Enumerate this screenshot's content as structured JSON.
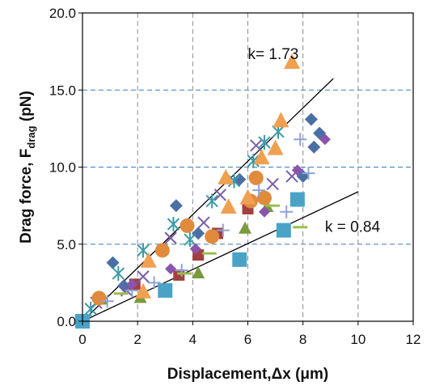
{
  "chart_data": {
    "type": "scatter",
    "xlabel": "Displacement,Δx (μm)",
    "ylabel_main": "Drag force,  F",
    "ylabel_sub": "drag",
    "ylabel_tail": " (pN)",
    "xlim": [
      0,
      12
    ],
    "ylim": [
      0,
      20
    ],
    "x_ticks": [
      0,
      2,
      4,
      6,
      8,
      10,
      12
    ],
    "y_ticks": [
      0,
      5,
      10,
      15,
      20
    ],
    "x_tick_labels": [
      "0",
      "2",
      "4",
      "6",
      "8",
      "10",
      "12"
    ],
    "y_tick_labels": [
      "0.0",
      "5.0",
      "10.0",
      "15.0",
      "20.0"
    ],
    "vertical_grid": "dashed gray",
    "horizontal_grid": "dashed blue",
    "fit_lines": [
      {
        "label": "k= 1.73",
        "slope": 1.73,
        "x_end": 9.1
      },
      {
        "label": "k = 0.84",
        "slope": 0.84,
        "x_end": 10.0
      }
    ],
    "series": [
      {
        "marker": "diamond",
        "color": "#4a6fa5",
        "points": [
          [
            0,
            0
          ],
          [
            1.1,
            3.8
          ],
          [
            1.5,
            2.3
          ],
          [
            3.4,
            7.5
          ],
          [
            4.2,
            5.7
          ],
          [
            5.7,
            9.2
          ],
          [
            8.3,
            13.1
          ],
          [
            8.4,
            11.3
          ],
          [
            8.6,
            12.2
          ],
          [
            8.0,
            9.4
          ]
        ]
      },
      {
        "marker": "square",
        "color": "#a33f3f",
        "points": [
          [
            0,
            0
          ],
          [
            1.9,
            2.4
          ],
          [
            3.5,
            3.0
          ],
          [
            4.2,
            4.3
          ],
          [
            4.9,
            5.7
          ],
          [
            6.0,
            7.3
          ]
        ]
      },
      {
        "marker": "triangle",
        "color": "#7a9a3d",
        "points": [
          [
            0,
            0
          ],
          [
            0.7,
            1.4
          ],
          [
            2.1,
            1.5
          ],
          [
            4.2,
            3.1
          ],
          [
            5.9,
            6.0
          ],
          [
            6.7,
            7.4
          ]
        ]
      },
      {
        "marker": "x",
        "color": "#7a5ea8",
        "points": [
          [
            0.5,
            1.2
          ],
          [
            1.6,
            2.0
          ],
          [
            2.2,
            2.9
          ],
          [
            3.2,
            5.4
          ],
          [
            4.4,
            6.4
          ],
          [
            5.0,
            8.2
          ],
          [
            6.3,
            11.4
          ],
          [
            6.9,
            8.9
          ],
          [
            7.6,
            9.4
          ]
        ]
      },
      {
        "marker": "asterisk",
        "color": "#3d9aa8",
        "points": [
          [
            0.3,
            0.8
          ],
          [
            1.3,
            3.1
          ],
          [
            2.2,
            4.6
          ],
          [
            3.3,
            6.3
          ],
          [
            3.9,
            5.3
          ],
          [
            4.7,
            7.8
          ],
          [
            5.5,
            9.1
          ],
          [
            6.6,
            11.6
          ],
          [
            7.1,
            12.3
          ],
          [
            6.2,
            10.4
          ]
        ]
      },
      {
        "marker": "circle",
        "color": "#e08a3c",
        "points": [
          [
            0.6,
            1.5
          ],
          [
            2.9,
            4.6
          ],
          [
            3.8,
            6.2
          ],
          [
            4.7,
            5.5
          ],
          [
            6.3,
            9.3
          ],
          [
            6.1,
            7.8
          ],
          [
            6.6,
            8.0
          ]
        ]
      },
      {
        "marker": "plus",
        "color": "#8ea3d6",
        "points": [
          [
            0.9,
            1.3
          ],
          [
            1.8,
            2.0
          ],
          [
            2.6,
            2.5
          ],
          [
            3.6,
            3.3
          ],
          [
            5.1,
            5.9
          ],
          [
            6.4,
            8.5
          ],
          [
            7.4,
            7.1
          ],
          [
            7.9,
            11.8
          ],
          [
            8.2,
            9.6
          ]
        ]
      },
      {
        "marker": "dash",
        "color": "#9bbd4a",
        "points": [
          [
            1.4,
            1.8
          ],
          [
            3.7,
            3.1
          ],
          [
            4.6,
            4.4
          ],
          [
            6.9,
            7.5
          ],
          [
            7.9,
            6.1
          ]
        ]
      },
      {
        "marker": "square-large",
        "color": "#4aa3c7",
        "points": [
          [
            0,
            0
          ],
          [
            3.0,
            2.0
          ],
          [
            5.7,
            4.0
          ],
          [
            7.3,
            5.9
          ],
          [
            7.8,
            7.9
          ]
        ]
      },
      {
        "marker": "triangle-large",
        "color": "#f0a050",
        "points": [
          [
            2.4,
            3.9
          ],
          [
            5.2,
            9.3
          ],
          [
            6.0,
            8.0
          ],
          [
            7.0,
            11.2
          ],
          [
            7.2,
            13.0
          ],
          [
            7.6,
            16.8
          ],
          [
            2.2,
            1.9
          ],
          [
            5.3,
            7.4
          ],
          [
            6.5,
            10.6
          ]
        ]
      },
      {
        "marker": "diamond-small",
        "color": "#8a55aa",
        "points": [
          [
            1.8,
            2.4
          ],
          [
            3.2,
            3.4
          ],
          [
            4.1,
            4.7
          ],
          [
            6.6,
            7.1
          ],
          [
            8.8,
            11.8
          ],
          [
            7.8,
            9.8
          ]
        ]
      }
    ]
  }
}
